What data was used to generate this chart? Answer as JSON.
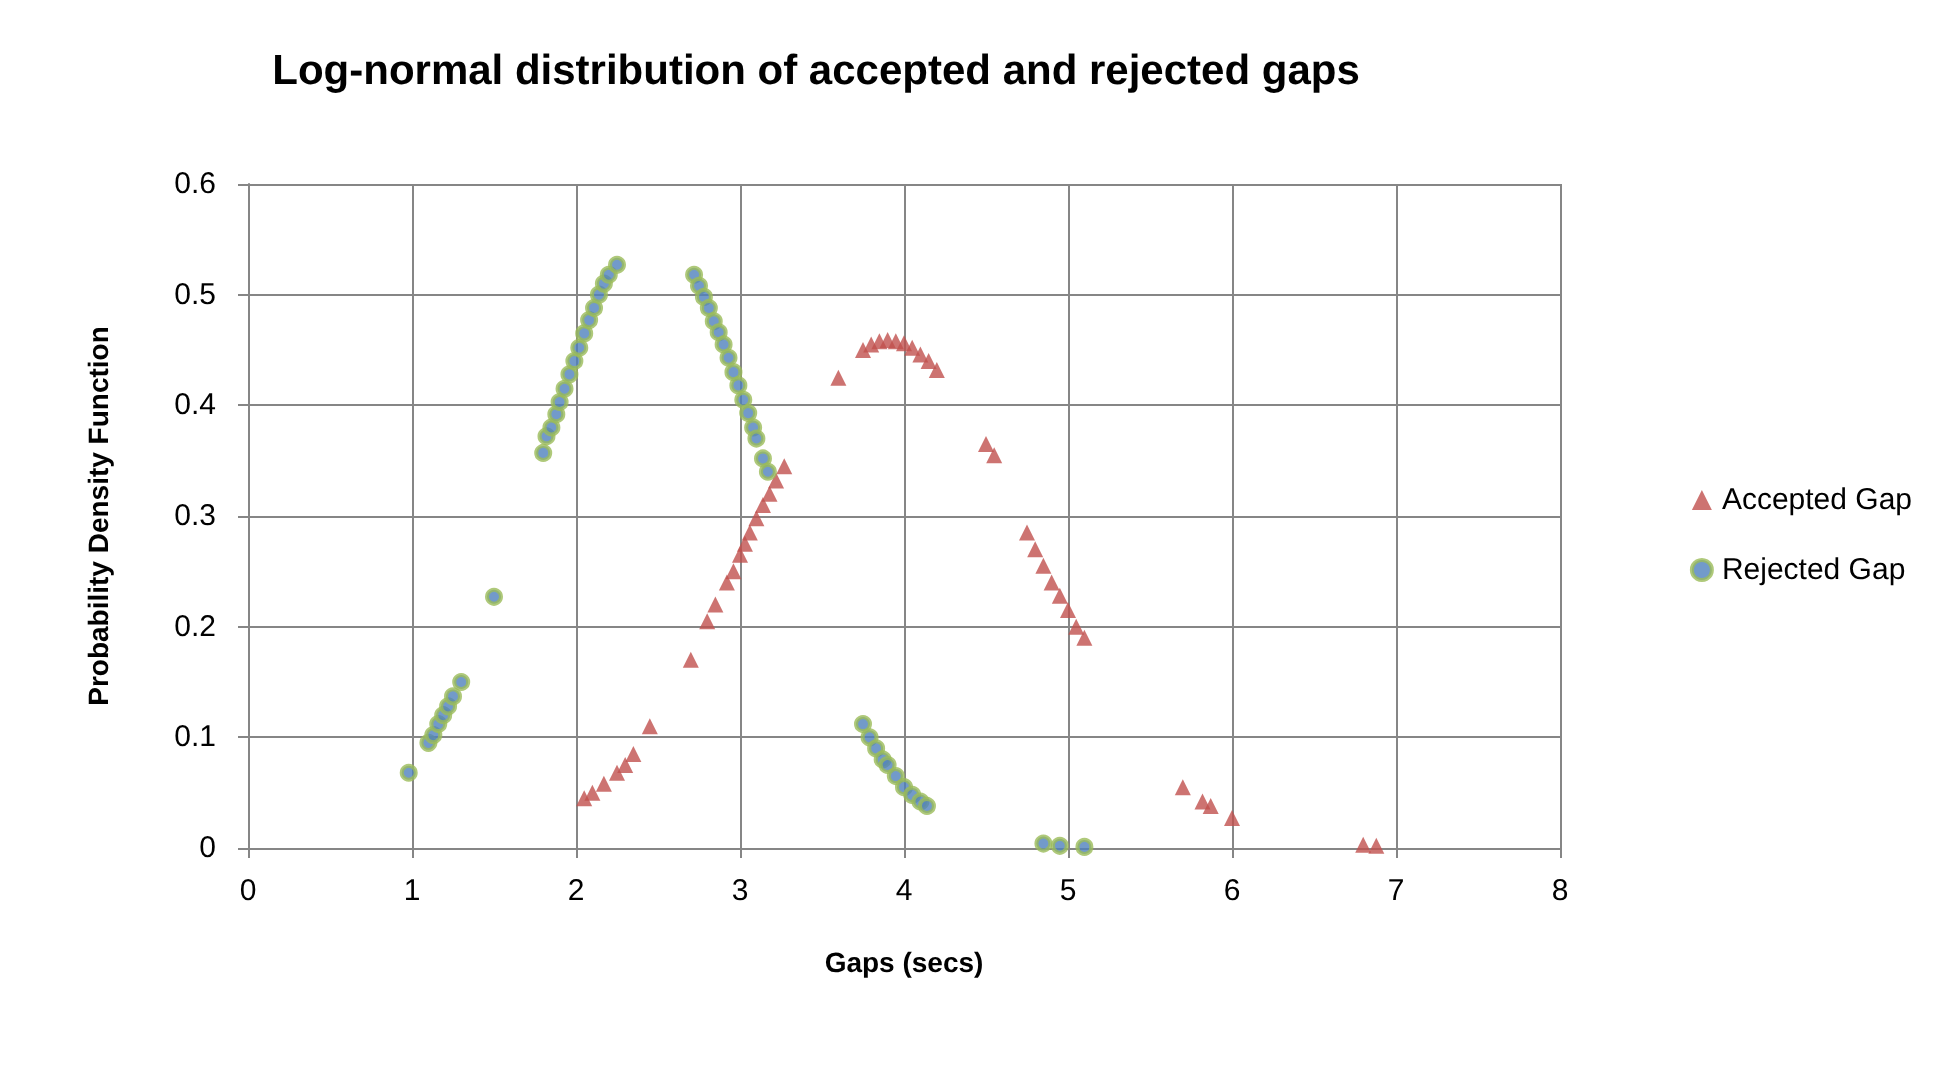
{
  "chart_data": {
    "type": "scatter",
    "title": "Log-normal distribution of accepted and rejected gaps",
    "xlabel": "Gaps (secs)",
    "ylabel": "Probability Density Function",
    "xlim": [
      0,
      8
    ],
    "xticks": [
      0,
      1,
      2,
      3,
      4,
      5,
      6,
      7,
      8
    ],
    "ylim": [
      0,
      0.6
    ],
    "yticks": [
      0,
      0.1,
      0.2,
      0.3,
      0.4,
      0.5,
      0.6
    ],
    "grid": true,
    "legend": "right",
    "series": [
      {
        "name": "Accepted Gap",
        "color": "#c0504d",
        "marker": "triangle",
        "x": [
          2.05,
          2.1,
          2.17,
          2.25,
          2.3,
          2.35,
          2.45,
          2.7,
          2.8,
          2.85,
          2.92,
          2.96,
          3.0,
          3.03,
          3.06,
          3.1,
          3.14,
          3.18,
          3.22,
          3.27,
          3.6,
          3.75,
          3.8,
          3.85,
          3.9,
          3.95,
          4.0,
          4.05,
          4.1,
          4.15,
          4.2,
          4.5,
          4.55,
          4.75,
          4.8,
          4.85,
          4.9,
          4.95,
          5.0,
          5.05,
          5.1,
          5.7,
          5.82,
          5.87,
          6.0,
          6.8,
          6.88
        ],
        "values": [
          0.045,
          0.05,
          0.058,
          0.068,
          0.075,
          0.085,
          0.11,
          0.17,
          0.205,
          0.22,
          0.24,
          0.25,
          0.265,
          0.275,
          0.285,
          0.298,
          0.31,
          0.32,
          0.332,
          0.345,
          0.425,
          0.45,
          0.455,
          0.458,
          0.459,
          0.458,
          0.456,
          0.452,
          0.446,
          0.44,
          0.432,
          0.365,
          0.355,
          0.285,
          0.27,
          0.255,
          0.24,
          0.228,
          0.215,
          0.2,
          0.19,
          0.055,
          0.042,
          0.038,
          0.027,
          0.003,
          0.002
        ]
      },
      {
        "name": "Rejected Gap",
        "color": "#9bbb59",
        "marker": "circle",
        "x": [
          0.98,
          1.1,
          1.13,
          1.16,
          1.19,
          1.22,
          1.25,
          1.3,
          1.5,
          1.8,
          1.82,
          1.85,
          1.88,
          1.9,
          1.93,
          1.96,
          1.99,
          2.02,
          2.05,
          2.08,
          2.11,
          2.14,
          2.17,
          2.2,
          2.25,
          2.72,
          2.75,
          2.78,
          2.81,
          2.84,
          2.87,
          2.9,
          2.93,
          2.96,
          2.99,
          3.02,
          3.05,
          3.08,
          3.1,
          3.14,
          3.17,
          3.75,
          3.79,
          3.83,
          3.87,
          3.9,
          3.95,
          4.0,
          4.05,
          4.1,
          4.14,
          4.85,
          4.95,
          5.1
        ],
        "values": [
          0.068,
          0.095,
          0.102,
          0.112,
          0.12,
          0.128,
          0.137,
          0.15,
          0.227,
          0.357,
          0.372,
          0.38,
          0.392,
          0.403,
          0.415,
          0.428,
          0.44,
          0.452,
          0.465,
          0.477,
          0.488,
          0.5,
          0.51,
          0.518,
          0.527,
          0.518,
          0.508,
          0.498,
          0.488,
          0.476,
          0.466,
          0.455,
          0.443,
          0.43,
          0.418,
          0.405,
          0.393,
          0.38,
          0.37,
          0.352,
          0.34,
          0.112,
          0.1,
          0.09,
          0.08,
          0.075,
          0.065,
          0.055,
          0.048,
          0.042,
          0.038,
          0.004,
          0.002,
          0.001
        ]
      }
    ]
  }
}
